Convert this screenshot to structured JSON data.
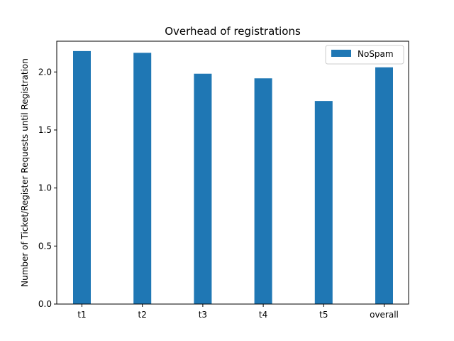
{
  "chart_data": {
    "type": "bar",
    "title": "Overhead of registrations",
    "xlabel": "",
    "ylabel": "Number of Ticket/Register Requests until Registration",
    "categories": [
      "t1",
      "t2",
      "t3",
      "t4",
      "t5",
      "overall"
    ],
    "series": [
      {
        "name": "NoSpam",
        "values": [
          2.18,
          2.165,
          1.985,
          1.945,
          1.75,
          2.04
        ],
        "color": "#1f77b4"
      }
    ],
    "ylim": [
      0,
      2.265
    ],
    "yticks": [
      0.0,
      0.5,
      1.0,
      1.5,
      2.0
    ],
    "ytick_labels": [
      "0.0",
      "0.5",
      "1.0",
      "1.5",
      "2.0"
    ],
    "grid": false,
    "legend": "top-right"
  }
}
